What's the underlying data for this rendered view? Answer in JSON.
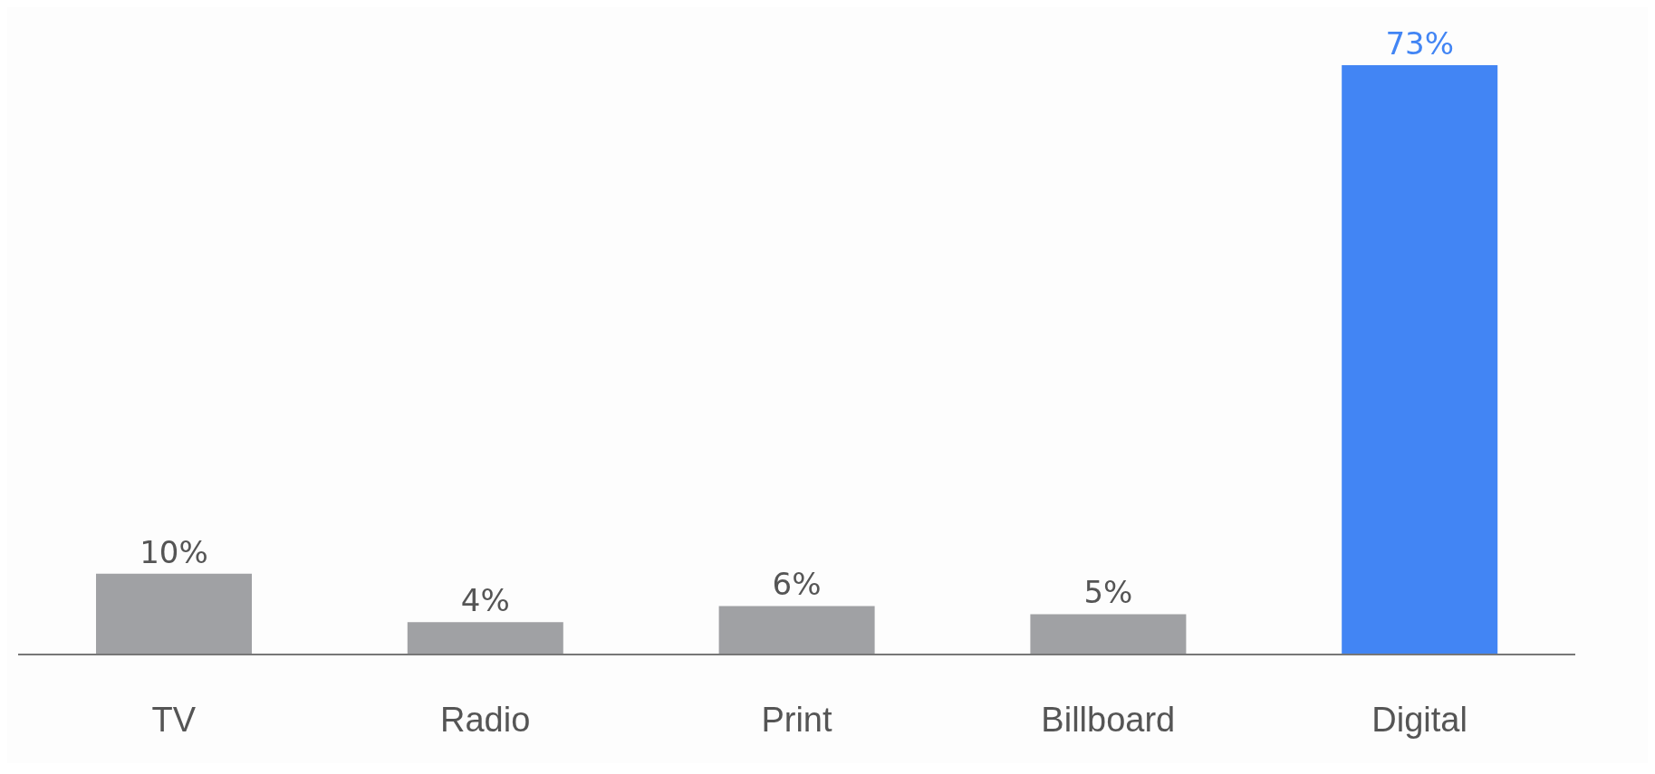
{
  "chart_data": {
    "type": "bar",
    "categories": [
      "TV",
      "Radio",
      "Print",
      "Billboard",
      "Digital"
    ],
    "values": [
      10,
      4,
      6,
      5,
      73
    ],
    "value_labels": [
      "10%",
      "4%",
      "6%",
      "5%",
      "73%"
    ],
    "colors": [
      "#a0a1a4",
      "#a0a1a4",
      "#a0a1a4",
      "#a0a1a4",
      "#4285f4"
    ],
    "grid": false,
    "legend": false
  }
}
